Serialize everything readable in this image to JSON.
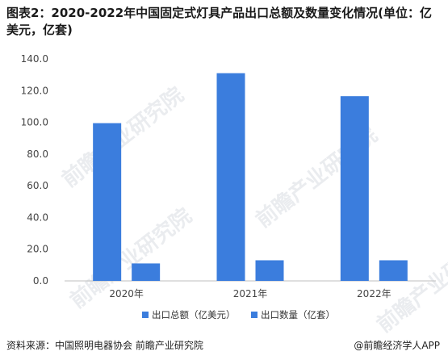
{
  "title": "图表2：2020-2022年中国固定式灯具产品出口总额及数量变化情况(单位：亿美元，亿套)",
  "source": "资料来源：中国照明电器协会 前瞻产业研究院",
  "brand": "@前瞻经济学人APP",
  "watermark": "前瞻产业研究院",
  "chart_data": {
    "type": "bar",
    "categories": [
      "2020年",
      "2021年",
      "2022年"
    ],
    "series": [
      {
        "name": "出口总额（亿美元）",
        "values": [
          99.5,
          131.0,
          116.5
        ],
        "color": "#3b7ddd"
      },
      {
        "name": "出口数量（亿套）",
        "values": [
          11.0,
          13.0,
          13.0
        ],
        "color": "#3b7ddd"
      }
    ],
    "yticks": [
      "0.0",
      "20.0",
      "40.0",
      "60.0",
      "80.0",
      "100.0",
      "120.0",
      "140.0"
    ],
    "ylim": [
      0,
      140
    ],
    "legend_position": "bottom",
    "grid": false
  }
}
